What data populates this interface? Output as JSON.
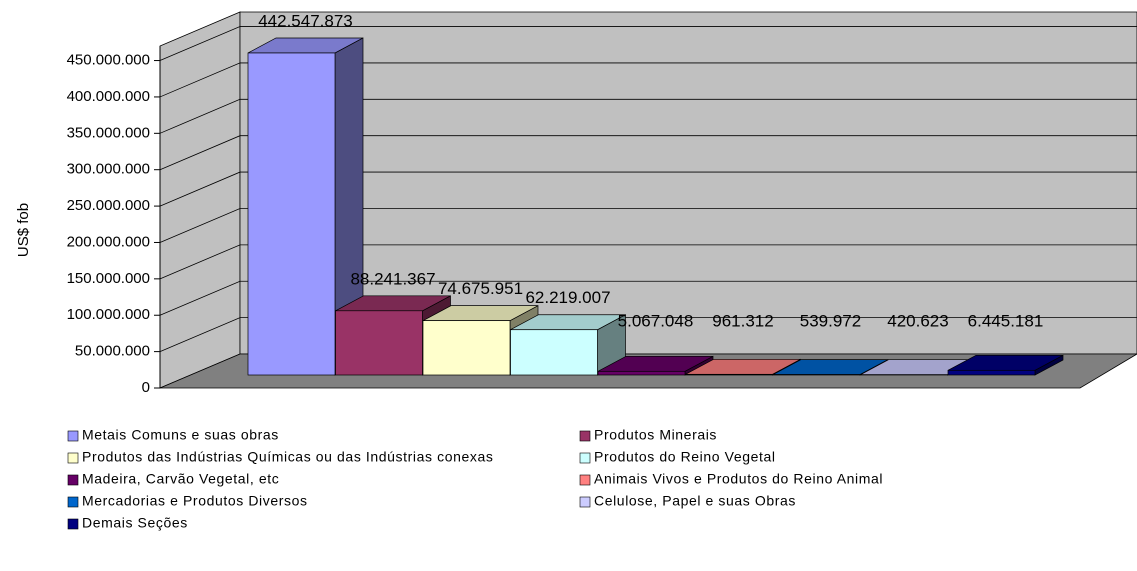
{
  "chart_data": {
    "type": "bar3d",
    "y_label": "US$ fob",
    "categories": [
      "Metais Comuns e suas obras",
      "Produtos Minerais",
      "Produtos das Indústrias Químicas ou das Indústrias conexas",
      "Produtos do Reino Vegetal",
      "Madeira, Carvão Vegetal, etc",
      "Animais Vivos e Produtos do Reino Animal",
      "Mercadorias e Produtos Diversos",
      "Celulose, Papel e suas Obras",
      "Demais Seções"
    ],
    "values": [
      442547873,
      88241367,
      74675951,
      62219007,
      5067048,
      961312,
      539972,
      420623,
      6445181
    ],
    "value_labels": [
      "442.547.873",
      "88.241.367",
      "74.675.951",
      "62.219.007",
      "5.067.048",
      "961.312",
      "539.972",
      "420.623",
      "6.445.181"
    ],
    "colors": [
      "#9999ff",
      "#993366",
      "#ffffcc",
      "#ccffff",
      "#660066",
      "#ff8080",
      "#0066cc",
      "#ccccff",
      "#000080"
    ],
    "ylim": [
      0,
      470000000
    ],
    "yticks": [
      0,
      {
        "value": 50000000,
        "label": "50.000.000"
      },
      {
        "value": 100000000,
        "label": "100.000.000"
      },
      {
        "value": 150000000,
        "label": "150.000.000"
      },
      {
        "value": 200000000,
        "label": "200.000.000"
      },
      {
        "value": 250000000,
        "label": "250.000.000"
      },
      {
        "value": 300000000,
        "label": "300.000.000"
      },
      {
        "value": 350000000,
        "label": "350.000.000"
      },
      {
        "value": 400000000,
        "label": "400.000.000"
      },
      {
        "value": 450000000,
        "label": "450.000.000"
      }
    ],
    "grid": true
  }
}
